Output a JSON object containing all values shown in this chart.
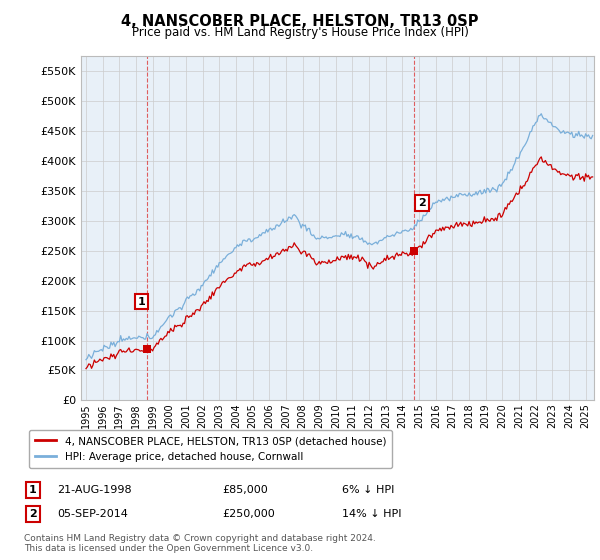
{
  "title": "4, NANSCOBER PLACE, HELSTON, TR13 0SP",
  "subtitle": "Price paid vs. HM Land Registry's House Price Index (HPI)",
  "legend_line1": "4, NANSCOBER PLACE, HELSTON, TR13 0SP (detached house)",
  "legend_line2": "HPI: Average price, detached house, Cornwall",
  "annotation1_date": "21-AUG-1998",
  "annotation1_price": "£85,000",
  "annotation1_hpi": "6% ↓ HPI",
  "annotation1_year": 1998.64,
  "annotation1_value": 85000,
  "annotation2_date": "05-SEP-2014",
  "annotation2_price": "£250,000",
  "annotation2_hpi": "14% ↓ HPI",
  "annotation2_year": 2014.68,
  "annotation2_value": 250000,
  "footer": "Contains HM Land Registry data © Crown copyright and database right 2024.\nThis data is licensed under the Open Government Licence v3.0.",
  "red_color": "#cc0000",
  "blue_color": "#7aafda",
  "marker_color": "#cc0000",
  "vline_color": "#dd4444",
  "grid_color": "#cccccc",
  "plot_bg_color": "#e8f0f8",
  "fig_bg_color": "#ffffff",
  "ylim": [
    0,
    575000
  ],
  "yticks": [
    0,
    50000,
    100000,
    150000,
    200000,
    250000,
    300000,
    350000,
    400000,
    450000,
    500000,
    550000
  ],
  "xmin": 1994.7,
  "xmax": 2025.5
}
